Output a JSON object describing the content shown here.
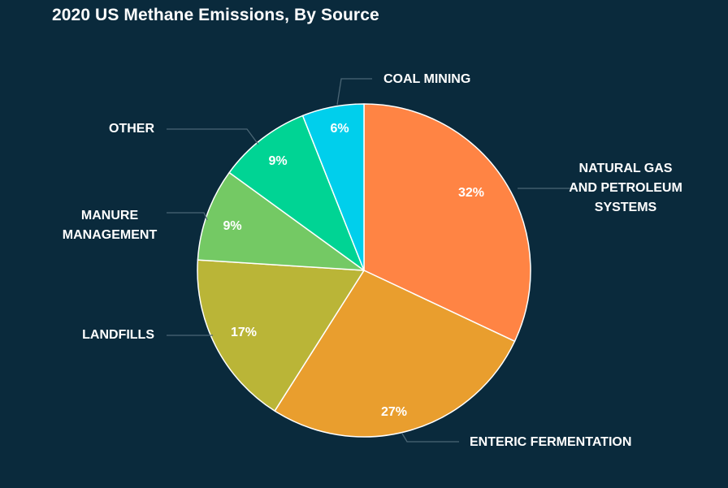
{
  "title": "2020 US Methane Emissions, By Source",
  "chart_data": {
    "type": "pie",
    "title": "2020 US Methane Emissions, By Source",
    "categories": [
      "Natural Gas and Petroleum Systems",
      "Enteric Fermentation",
      "Landfills",
      "Manure Management",
      "Other",
      "Coal Mining"
    ],
    "values": [
      32,
      27,
      17,
      9,
      9,
      6
    ],
    "unit": "%",
    "colors": [
      "#ff8444",
      "#e99e2e",
      "#bab537",
      "#74c964",
      "#00d494",
      "#00cfec"
    ],
    "start_angle": "12 o'clock, clockwise"
  },
  "labels": {
    "natural_gas": [
      "NATURAL GAS",
      "AND PETROLEUM",
      "SYSTEMS"
    ],
    "enteric": "ENTERIC FERMENTATION",
    "landfills": "LANDFILLS",
    "manure": [
      "MANURE",
      "MANAGEMENT"
    ],
    "other": "OTHER",
    "coal": "COAL MINING"
  },
  "pct_labels": {
    "natural_gas": "32%",
    "enteric": "27%",
    "landfills": "17%",
    "manure": "9%",
    "other": "9%",
    "coal": "6%"
  },
  "colors": {
    "background": "#0a2a3c",
    "leader_line": "#4b6675",
    "slice_border": "#ffffff"
  }
}
